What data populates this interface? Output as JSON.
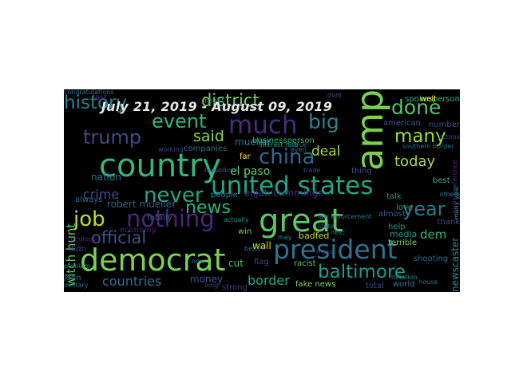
{
  "title": "July 21, 2019 - August 09, 2019",
  "background_color": "#000000",
  "palette": "viridis",
  "words": [
    {
      "text": "great",
      "color": "#5ec962"
    },
    {
      "text": "democrat",
      "color": "#7ad151"
    },
    {
      "text": "amp",
      "color": "#7ad151"
    },
    {
      "text": "country",
      "color": "#35b779"
    },
    {
      "text": "united states",
      "color": "#21a685"
    },
    {
      "text": "president",
      "color": "#2c728e"
    },
    {
      "text": "much",
      "color": "#472d7b"
    },
    {
      "text": "china",
      "color": "#31688e"
    },
    {
      "text": "never",
      "color": "#22a884"
    },
    {
      "text": "nothing",
      "color": "#482878"
    },
    {
      "text": "job",
      "color": "#bddf26"
    },
    {
      "text": "year",
      "color": "#2a788e"
    },
    {
      "text": "event",
      "color": "#2fb47c"
    },
    {
      "text": "trump",
      "color": "#3e4a89"
    },
    {
      "text": "done",
      "color": "#52c569"
    },
    {
      "text": "many",
      "color": "#9fda3a"
    },
    {
      "text": "big",
      "color": "#25858e"
    },
    {
      "text": "news",
      "color": "#2db27d"
    },
    {
      "text": "official",
      "color": "#3b528b"
    },
    {
      "text": "baltimore",
      "color": "#1f9a8a"
    },
    {
      "text": "countries",
      "color": "#2d708e"
    },
    {
      "text": "history",
      "color": "#26828e"
    },
    {
      "text": "district",
      "color": "#75d054"
    },
    {
      "text": "said",
      "color": "#86d549"
    },
    {
      "text": "today",
      "color": "#a5db36"
    },
    {
      "text": "crime",
      "color": "#3e4c8a"
    },
    {
      "text": "border",
      "color": "#22a785"
    },
    {
      "text": "deal",
      "color": "#a8db34"
    },
    {
      "text": "witch hunt",
      "color": "#5ec962"
    },
    {
      "text": "dem",
      "color": "#35b779"
    },
    {
      "text": "money",
      "color": "#3b528b"
    },
    {
      "text": "elijah cummings",
      "color": "#472c7a"
    },
    {
      "text": "robert mueller",
      "color": "#33638d"
    },
    {
      "text": "el paso",
      "color": "#65cb5e"
    },
    {
      "text": "fake news",
      "color": "#7fd34e"
    },
    {
      "text": "badfed",
      "color": "#bddf26"
    },
    {
      "text": "wall",
      "color": "#d2e21b"
    },
    {
      "text": "flag",
      "color": "#424086"
    },
    {
      "text": "cut",
      "color": "#4ac16d"
    },
    {
      "text": "mueller",
      "color": "#2c738e"
    },
    {
      "text": "american",
      "color": "#3b528b"
    },
    {
      "text": "media",
      "color": "#21908d"
    },
    {
      "text": "spokesperson",
      "color": "#2db27d"
    },
    {
      "text": "nation",
      "color": "#2a778e"
    },
    {
      "text": "totally",
      "color": "#38588c"
    },
    {
      "text": "economy",
      "color": "#482475"
    },
    {
      "text": "john",
      "color": "#2d708e"
    },
    {
      "text": "thank",
      "color": "#3e4989"
    },
    {
      "text": "last",
      "color": "#46337f"
    },
    {
      "text": "far",
      "color": "#fde725"
    },
    {
      "text": "love",
      "color": "#22a884"
    },
    {
      "text": "almost",
      "color": "#365c8d"
    },
    {
      "text": "well",
      "color": "#fde725"
    },
    {
      "text": "number",
      "color": "#3b528b"
    },
    {
      "text": "best",
      "color": "#35b779"
    },
    {
      "text": "newscaster",
      "color": "#21918c"
    },
    {
      "text": "total",
      "color": "#3e4a89"
    },
    {
      "text": "world",
      "color": "#2a788e"
    },
    {
      "text": "people",
      "color": "#26828e"
    },
    {
      "text": "win",
      "color": "#6ccd5a"
    },
    {
      "text": "help",
      "color": "#1f9e89"
    },
    {
      "text": "thing",
      "color": "#3b528b"
    },
    {
      "text": "must",
      "color": "#33638d"
    },
    {
      "text": "companies",
      "color": "#2c728e"
    },
    {
      "text": "businessperson",
      "color": "#2fb47c"
    },
    {
      "text": "always",
      "color": "#2d708e"
    },
    {
      "text": "didn",
      "color": "#3e4a89"
    },
    {
      "text": "racist",
      "color": "#5ec962"
    },
    {
      "text": "strong",
      "color": "#433e85"
    },
    {
      "text": "shooting",
      "color": "#31688e"
    },
    {
      "text": "military",
      "color": "#2c728e"
    },
    {
      "text": "terrible",
      "color": "#7ad151"
    },
    {
      "text": "talk",
      "color": "#1f9a8a"
    },
    {
      "text": "congress",
      "color": "#482878"
    },
    {
      "text": "actually",
      "color": "#21918c"
    },
    {
      "text": "true",
      "color": "#2c728e"
    },
    {
      "text": "dont",
      "color": "#3b528b"
    },
    {
      "text": "long",
      "color": "#3e4a89"
    },
    {
      "text": "better",
      "color": "#31688e"
    },
    {
      "text": "others",
      "color": "#2a788e"
    },
    {
      "text": "problem",
      "color": "#26828e"
    },
    {
      "text": "working",
      "color": "#3e4a89"
    },
    {
      "text": "may",
      "color": "#21918c"
    },
    {
      "text": "state",
      "color": "#2c728e"
    },
    {
      "text": "interest rate",
      "color": "#1f9e89"
    },
    {
      "text": "next",
      "color": "#33638d"
    },
    {
      "text": "now",
      "color": "#2d708e"
    },
    {
      "text": "many year",
      "color": "#22a884"
    },
    {
      "text": "southern border",
      "color": "#2c728e"
    },
    {
      "text": "law enforcement",
      "color": "#26828e"
    },
    {
      "text": "mass",
      "color": "#3e4a89"
    },
    {
      "text": "news conference",
      "color": "#482878"
    },
    {
      "text": "republican",
      "color": "#31688e"
    },
    {
      "text": "even",
      "color": "#2d708e"
    },
    {
      "text": "trade",
      "color": "#3b528b"
    },
    {
      "text": "house",
      "color": "#2a788e"
    },
    {
      "text": "inflation",
      "color": "#21918c"
    },
    {
      "text": "victims",
      "color": "#3e4a89"
    },
    {
      "text": "congratulations",
      "color": "#2c728e"
    }
  ]
}
